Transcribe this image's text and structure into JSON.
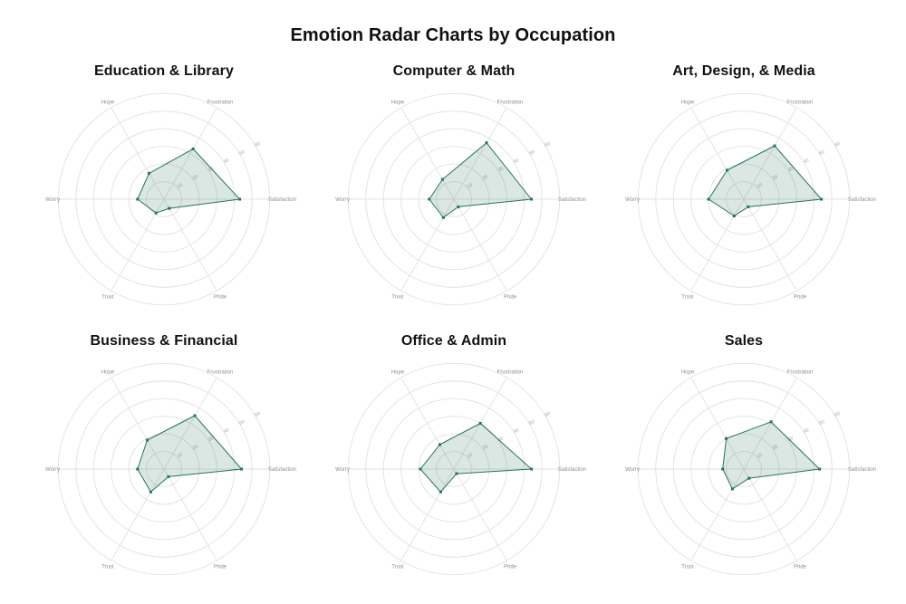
{
  "page_title": "Emotion Radar Charts by Occupation",
  "radar": {
    "axes": [
      {
        "label": "Hope",
        "angle": 120
      },
      {
        "label": "Frustration",
        "angle": 60
      },
      {
        "label": "Satisfaction",
        "angle": 0
      },
      {
        "label": "Pride",
        "angle": 300
      },
      {
        "label": "Trust",
        "angle": 240
      },
      {
        "label": "Worry",
        "angle": 180
      }
    ],
    "ticks": [
      10,
      20,
      30,
      40,
      50,
      60
    ],
    "max": 60,
    "grid_on": true,
    "colors": {
      "line": "#26735a",
      "fill": "rgba(35,114,90,0.17)",
      "grid": "#e1e1e1",
      "axis_label": "#8e8e8e",
      "tick_label": "#a8a8a8",
      "title": "#121212"
    }
  },
  "chart_data": [
    {
      "type": "radar",
      "title": "Education & Library",
      "categories": [
        "Hope",
        "Frustration",
        "Satisfaction",
        "Pride",
        "Trust",
        "Worry"
      ],
      "values": [
        17,
        33,
        43,
        6,
        9,
        15
      ],
      "rlim": [
        0,
        60
      ]
    },
    {
      "type": "radar",
      "title": "Computer & Math",
      "categories": [
        "Hope",
        "Frustration",
        "Satisfaction",
        "Pride",
        "Trust",
        "Worry"
      ],
      "values": [
        13,
        37,
        44,
        5,
        12,
        14
      ],
      "rlim": [
        0,
        60
      ]
    },
    {
      "type": "radar",
      "title": "Art, Design, & Media",
      "categories": [
        "Hope",
        "Frustration",
        "Satisfaction",
        "Pride",
        "Trust",
        "Worry"
      ],
      "values": [
        19,
        35,
        44,
        5,
        11,
        20
      ],
      "rlim": [
        0,
        60
      ]
    },
    {
      "type": "radar",
      "title": "Business & Financial",
      "categories": [
        "Hope",
        "Frustration",
        "Satisfaction",
        "Pride",
        "Trust",
        "Worry"
      ],
      "values": [
        19,
        35,
        44,
        5,
        15,
        15
      ],
      "rlim": [
        0,
        60
      ]
    },
    {
      "type": "radar",
      "title": "Office & Admin",
      "categories": [
        "Hope",
        "Frustration",
        "Satisfaction",
        "Pride",
        "Trust",
        "Worry"
      ],
      "values": [
        16,
        30,
        44,
        3,
        15,
        19
      ],
      "rlim": [
        0,
        60
      ]
    },
    {
      "type": "radar",
      "title": "Sales",
      "categories": [
        "Hope",
        "Frustration",
        "Satisfaction",
        "Pride",
        "Trust",
        "Worry"
      ],
      "values": [
        20,
        31,
        43,
        6,
        13,
        12
      ],
      "rlim": [
        0,
        60
      ]
    }
  ]
}
